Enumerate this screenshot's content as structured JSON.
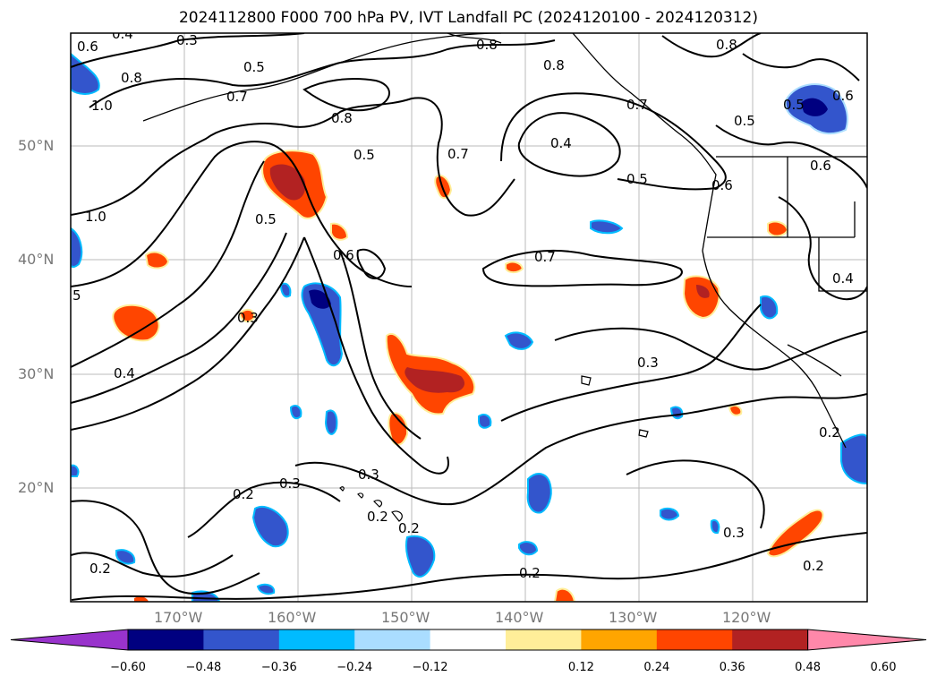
{
  "title": "2024112800 F000 700 hPa PV, IVT Landfall PC (2024120100 - 2024120312)",
  "lat_labels": [
    "50°N",
    "40°N",
    "30°N",
    "20°N"
  ],
  "lon_labels": [
    "170°W",
    "160°W",
    "150°W",
    "140°W",
    "130°W",
    "120°W"
  ],
  "colorbar": {
    "ticks": [
      "−0.60",
      "−0.48",
      "−0.36",
      "−0.24",
      "−0.12",
      "0.12",
      "0.24",
      "0.36",
      "0.48",
      "0.60"
    ],
    "colors": [
      "#9933cc",
      "#000080",
      "#3355cc",
      "#00bbff",
      "#aaddff",
      "#ffffff",
      "#ffee99",
      "#ffa500",
      "#ff4500",
      "#b22222",
      "#ff88aa"
    ]
  },
  "contour_labels": [
    "0.6",
    "0.4",
    "0.3",
    "0.5",
    "0.8",
    "1.0",
    "0.7",
    "0.8",
    "0.5",
    "0.7",
    "0.4",
    "0.5",
    "0.6",
    "0.5",
    "1.0",
    "0.5",
    "0.6",
    "0.7",
    "0.7",
    "0.4",
    "0.6",
    "0.3",
    "0.4",
    "0.2",
    "0.3",
    "0.3",
    "0.2",
    "0.2",
    "0.2",
    "0.2",
    "0.3",
    "0.2",
    "0.3",
    "0.2",
    "5",
    "0.8",
    "0.8",
    "0.6",
    "0.5",
    "0.8"
  ]
}
